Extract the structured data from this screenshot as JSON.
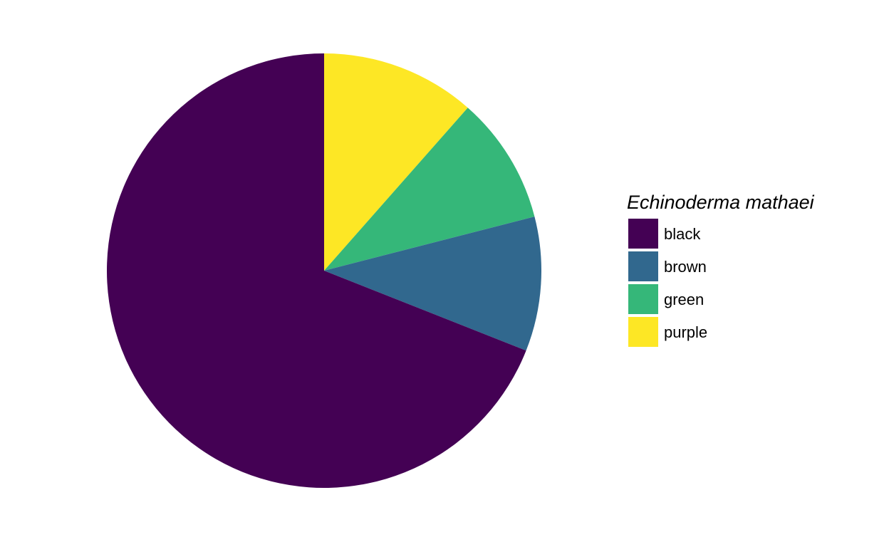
{
  "chart_data": {
    "type": "pie",
    "title": "",
    "legend": {
      "title": "Echinoderma mathaei",
      "position": "right"
    },
    "start_angle_deg": 0,
    "direction": "clockwise",
    "slices": [
      {
        "label": "purple",
        "value": 11.5,
        "color": "#FDE725"
      },
      {
        "label": "green",
        "value": 9.5,
        "color": "#35B779"
      },
      {
        "label": "brown",
        "value": 10.0,
        "color": "#31688E"
      },
      {
        "label": "black",
        "value": 69.0,
        "color": "#440154"
      }
    ],
    "legend_order": [
      "black",
      "brown",
      "green",
      "purple"
    ]
  }
}
